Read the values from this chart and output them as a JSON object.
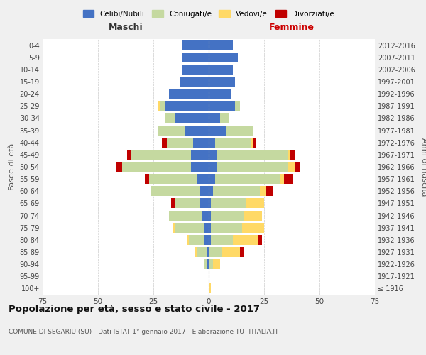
{
  "age_groups": [
    "100+",
    "95-99",
    "90-94",
    "85-89",
    "80-84",
    "75-79",
    "70-74",
    "65-69",
    "60-64",
    "55-59",
    "50-54",
    "45-49",
    "40-44",
    "35-39",
    "30-34",
    "25-29",
    "20-24",
    "15-19",
    "10-14",
    "5-9",
    "0-4"
  ],
  "birth_years": [
    "≤ 1916",
    "1917-1921",
    "1922-1926",
    "1927-1931",
    "1932-1936",
    "1937-1941",
    "1942-1946",
    "1947-1951",
    "1952-1956",
    "1957-1961",
    "1962-1966",
    "1967-1971",
    "1972-1976",
    "1977-1981",
    "1982-1986",
    "1987-1991",
    "1992-1996",
    "1997-2001",
    "2002-2006",
    "2007-2011",
    "2012-2016"
  ],
  "male": {
    "celibe": [
      0,
      0,
      1,
      1,
      2,
      2,
      3,
      4,
      4,
      5,
      8,
      8,
      7,
      11,
      15,
      20,
      18,
      13,
      12,
      12,
      12
    ],
    "coniugato": [
      0,
      0,
      1,
      4,
      7,
      13,
      15,
      11,
      22,
      22,
      31,
      27,
      12,
      12,
      5,
      2,
      0,
      0,
      0,
      0,
      0
    ],
    "vedovo": [
      0,
      0,
      0,
      1,
      1,
      1,
      0,
      0,
      0,
      0,
      0,
      0,
      0,
      0,
      0,
      1,
      0,
      0,
      0,
      0,
      0
    ],
    "divorziato": [
      0,
      0,
      0,
      0,
      0,
      0,
      0,
      2,
      0,
      2,
      3,
      2,
      2,
      0,
      0,
      0,
      0,
      0,
      0,
      0,
      0
    ]
  },
  "female": {
    "nubile": [
      0,
      0,
      0,
      0,
      1,
      1,
      1,
      1,
      2,
      3,
      4,
      4,
      3,
      8,
      5,
      12,
      10,
      12,
      11,
      13,
      11
    ],
    "coniugata": [
      0,
      0,
      2,
      6,
      10,
      14,
      15,
      16,
      21,
      29,
      32,
      32,
      16,
      12,
      4,
      2,
      0,
      0,
      0,
      0,
      0
    ],
    "vedova": [
      1,
      0,
      3,
      8,
      11,
      10,
      8,
      8,
      3,
      2,
      3,
      1,
      1,
      0,
      0,
      0,
      0,
      0,
      0,
      0,
      0
    ],
    "divorziata": [
      0,
      0,
      0,
      2,
      2,
      0,
      0,
      0,
      3,
      4,
      2,
      2,
      1,
      0,
      0,
      0,
      0,
      0,
      0,
      0,
      0
    ]
  },
  "colors": {
    "celibe": "#4472C4",
    "coniugato": "#c5d9a0",
    "vedovo": "#ffd966",
    "divorziato": "#c00000"
  },
  "xlim": 75,
  "title": "Popolazione per età, sesso e stato civile - 2017",
  "subtitle": "COMUNE DI SEGARIU (SU) - Dati ISTAT 1° gennaio 2017 - Elaborazione TUTTITALIA.IT",
  "legend_labels": [
    "Celibi/Nubili",
    "Coniugati/e",
    "Vedovi/e",
    "Divorziati/e"
  ],
  "maschi_label": "Maschi",
  "femmine_label": "Femmine",
  "ylabel_left": "Fasce di età",
  "ylabel_right": "Anni di nascita",
  "bg_color": "#f0f0f0",
  "plot_bg": "#ffffff",
  "xticks": [
    -75,
    -50,
    -25,
    0,
    25,
    50,
    75
  ],
  "xticklabels": [
    "75",
    "50",
    "25",
    "0",
    "25",
    "50",
    "75"
  ]
}
